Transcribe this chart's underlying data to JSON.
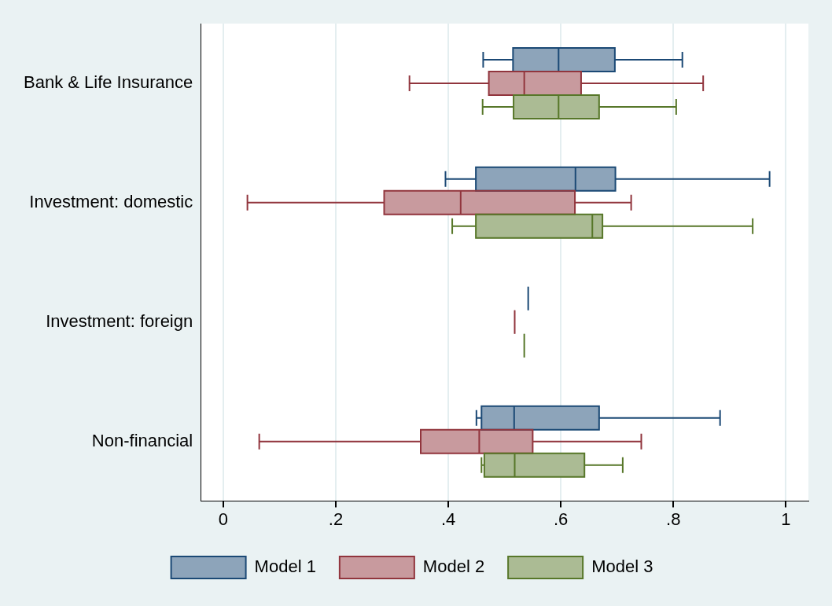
{
  "chart_data": {
    "type": "box",
    "orientation": "horizontal",
    "categories": [
      "Bank & Life Insurance",
      "Investment: domestic",
      "Investment: foreign",
      "Non-financial"
    ],
    "series": [
      {
        "name": "Model 1",
        "color": "#8da4ba",
        "boxes": [
          {
            "low": 0.462,
            "q1": 0.515,
            "median": 0.596,
            "q3": 0.696,
            "high": 0.816
          },
          {
            "low": 0.395,
            "q1": 0.449,
            "median": 0.626,
            "q3": 0.697,
            "high": 0.971
          },
          {
            "low": 0.542,
            "q1": 0.542,
            "median": 0.542,
            "q3": 0.542,
            "high": 0.542
          },
          {
            "low": 0.45,
            "q1": 0.459,
            "median": 0.517,
            "q3": 0.668,
            "high": 0.883
          }
        ]
      },
      {
        "name": "Model 2",
        "color": "#c89a9e",
        "boxes": [
          {
            "low": 0.331,
            "q1": 0.472,
            "median": 0.535,
            "q3": 0.636,
            "high": 0.853
          },
          {
            "low": 0.043,
            "q1": 0.286,
            "median": 0.422,
            "q3": 0.625,
            "high": 0.725
          },
          {
            "low": 0.518,
            "q1": 0.518,
            "median": 0.518,
            "q3": 0.518,
            "high": 0.518
          },
          {
            "low": 0.064,
            "q1": 0.351,
            "median": 0.455,
            "q3": 0.55,
            "high": 0.743
          }
        ]
      },
      {
        "name": "Model 3",
        "color": "#abbb94",
        "boxes": [
          {
            "low": 0.461,
            "q1": 0.516,
            "median": 0.596,
            "q3": 0.668,
            "high": 0.805
          },
          {
            "low": 0.407,
            "q1": 0.449,
            "median": 0.656,
            "q3": 0.674,
            "high": 0.941
          },
          {
            "low": 0.535,
            "q1": 0.535,
            "median": 0.535,
            "q3": 0.535,
            "high": 0.535
          },
          {
            "low": 0.459,
            "q1": 0.464,
            "median": 0.518,
            "q3": 0.642,
            "high": 0.71
          }
        ]
      }
    ],
    "xlim": [
      -0.04,
      1.04
    ],
    "xticks": [
      0,
      {
        "value": 0.2,
        "label": ".2"
      },
      {
        "value": 0.4,
        "label": ".4"
      },
      {
        "value": 0.6,
        "label": ".6"
      },
      {
        "value": 0.8,
        "label": ".8"
      },
      1
    ],
    "grid": "x",
    "legend": "bottom"
  }
}
